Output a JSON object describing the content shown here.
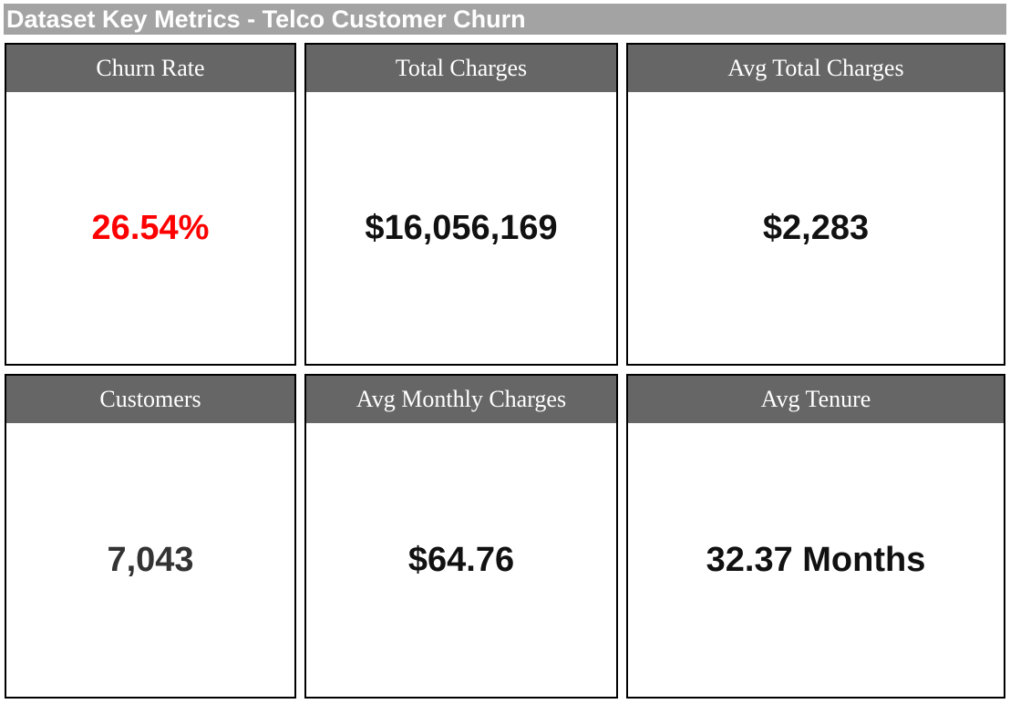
{
  "title": "Dataset Key Metrics - Telco Customer Churn",
  "colors": {
    "title_background": "#a3a3a3",
    "header_background": "#666666",
    "churn_value": "#ff0000",
    "customers_value": "#333333",
    "default_value": "#111111"
  },
  "metrics": [
    {
      "label": "Churn Rate",
      "value": "26.54%",
      "color": "#ff0000"
    },
    {
      "label": "Total Charges",
      "value": "$16,056,169",
      "color": "#111111"
    },
    {
      "label": "Avg Total Charges",
      "value": "$2,283",
      "color": "#111111"
    },
    {
      "label": "Customers",
      "value": "7,043",
      "color": "#333333"
    },
    {
      "label": "Avg Monthly Charges",
      "value": "$64.76",
      "color": "#111111"
    },
    {
      "label": "Avg Tenure",
      "value": "32.37 Months",
      "color": "#111111"
    }
  ]
}
